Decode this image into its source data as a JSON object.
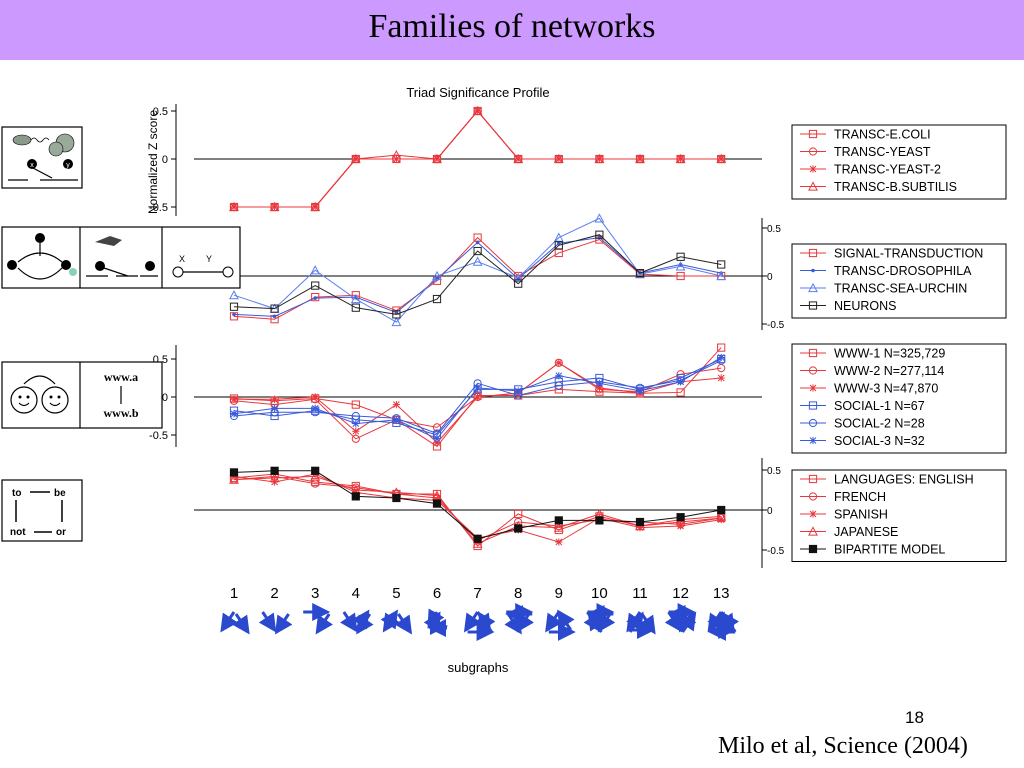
{
  "slide": {
    "title": "Families of networks",
    "number": "18",
    "citation": "Milo et al, Science (2004)"
  },
  "figure": {
    "title": "Triad Significance Profile",
    "ylabel": "Normalized Z score",
    "xlabel": "subgraphs",
    "subgraph_ids": [
      "1",
      "2",
      "3",
      "4",
      "5",
      "6",
      "7",
      "8",
      "9",
      "10",
      "11",
      "12",
      "13"
    ],
    "icon_text": {
      "www_top": "www.a",
      "www_bottom": "www.b",
      "lang_to": "to",
      "lang_be": "be",
      "lang_not": "not",
      "lang_or": "or",
      "neuron_x": "X",
      "neuron_y": "Y",
      "node_x": "x",
      "node_y": "y"
    }
  },
  "chart_data": [
    {
      "type": "line",
      "panel": "transcription",
      "x": [
        1,
        2,
        3,
        4,
        5,
        6,
        7,
        8,
        9,
        10,
        11,
        12,
        13
      ],
      "ylim": [
        -0.6,
        0.6
      ],
      "yticks": [
        "0.5",
        "0",
        "-0.5"
      ],
      "axis_side": "left",
      "series": [
        {
          "name": "TRANSC-E.COLI",
          "color": "#e8373c",
          "marker": "square",
          "values": [
            -0.5,
            -0.5,
            -0.5,
            0,
            0,
            0,
            0.5,
            0,
            0,
            0,
            0,
            0,
            0
          ]
        },
        {
          "name": "TRANSC-YEAST",
          "color": "#e8373c",
          "marker": "circle",
          "values": [
            -0.5,
            -0.5,
            -0.5,
            0,
            0,
            0,
            0.5,
            0,
            0,
            0,
            0,
            0,
            0
          ]
        },
        {
          "name": "TRANSC-YEAST-2",
          "color": "#e8373c",
          "marker": "star",
          "values": [
            -0.5,
            -0.5,
            -0.5,
            0,
            0,
            0,
            0.5,
            0,
            0,
            0,
            0,
            0,
            0
          ]
        },
        {
          "name": "TRANSC-B.SUBTILIS",
          "color": "#e8373c",
          "marker": "triangle",
          "values": [
            -0.5,
            -0.5,
            -0.5,
            0,
            0.04,
            0,
            0.5,
            0,
            0,
            0,
            0,
            0,
            0
          ]
        }
      ]
    },
    {
      "type": "line",
      "panel": "signal-transduction",
      "x": [
        1,
        2,
        3,
        4,
        5,
        6,
        7,
        8,
        9,
        10,
        11,
        12,
        13
      ],
      "ylim": [
        -0.6,
        0.6
      ],
      "yticks": [
        "0.5",
        "0",
        "-0.5"
      ],
      "axis_side": "right",
      "series": [
        {
          "name": "SIGNAL-TRANSDUCTION",
          "color": "#e8373c",
          "marker": "square",
          "values": [
            -0.42,
            -0.45,
            -0.22,
            -0.2,
            -0.36,
            -0.05,
            0.4,
            0,
            0.24,
            0.38,
            0.02,
            0,
            0
          ]
        },
        {
          "name": "TRANSC-DROSOPHILA",
          "color": "#3a5bd9",
          "marker": "dot",
          "values": [
            -0.4,
            -0.42,
            -0.23,
            -0.22,
            -0.38,
            -0.03,
            0.35,
            -0.03,
            0.34,
            0.4,
            0.03,
            0.12,
            0.03
          ]
        },
        {
          "name": "TRANSC-SEA-URCHIN",
          "color": "#5b7ff0",
          "marker": "triangle",
          "values": [
            -0.2,
            -0.34,
            0.06,
            -0.24,
            -0.48,
            0,
            0.15,
            -0.02,
            0.4,
            0.6,
            0.02,
            0.1,
            0
          ]
        },
        {
          "name": "NEURONS",
          "color": "#222222",
          "marker": "square",
          "values": [
            -0.32,
            -0.34,
            -0.1,
            -0.33,
            -0.4,
            -0.24,
            0.26,
            -0.08,
            0.32,
            0.43,
            0.03,
            0.2,
            0.12
          ]
        }
      ]
    },
    {
      "type": "line",
      "panel": "www-social",
      "x": [
        1,
        2,
        3,
        4,
        5,
        6,
        7,
        8,
        9,
        10,
        11,
        12,
        13
      ],
      "ylim": [
        -0.6,
        0.6
      ],
      "yticks": [
        "0.5",
        "0",
        "-0.5"
      ],
      "axis_side": "left",
      "series": [
        {
          "name": "WWW-1 N=325,729",
          "color": "#e8373c",
          "marker": "square",
          "values": [
            -0.02,
            -0.05,
            -0.02,
            -0.1,
            -0.3,
            -0.65,
            0.02,
            0.02,
            0.1,
            0.07,
            0.05,
            0.06,
            0.65
          ]
        },
        {
          "name": "WWW-2 N=277,114",
          "color": "#e8373c",
          "marker": "circle",
          "values": [
            -0.05,
            -0.1,
            -0.03,
            -0.55,
            -0.3,
            -0.4,
            0,
            0.05,
            0.45,
            0.1,
            0.07,
            0.3,
            0.38
          ]
        },
        {
          "name": "WWW-3 N=47,870",
          "color": "#e8373c",
          "marker": "star",
          "values": [
            -0.03,
            -0.03,
            0,
            -0.45,
            -0.1,
            -0.6,
            0,
            0.05,
            0.45,
            0.12,
            0.05,
            0.2,
            0.25
          ]
        },
        {
          "name": "SOCIAL-1 N=67",
          "color": "#3a5bd9",
          "marker": "square",
          "values": [
            -0.18,
            -0.25,
            -0.18,
            -0.3,
            -0.34,
            -0.5,
            0.1,
            0.1,
            0.2,
            0.25,
            0.1,
            0.25,
            0.5
          ]
        },
        {
          "name": "SOCIAL-2 N=28",
          "color": "#3a5bd9",
          "marker": "circle",
          "values": [
            -0.25,
            -0.2,
            -0.2,
            -0.25,
            -0.28,
            -0.48,
            0.18,
            0.02,
            0.15,
            0.2,
            0.12,
            0.22,
            0.48
          ]
        },
        {
          "name": "SOCIAL-3 N=32",
          "color": "#3a5bd9",
          "marker": "star",
          "values": [
            -0.22,
            -0.15,
            -0.15,
            -0.35,
            -0.3,
            -0.55,
            0.12,
            0.08,
            0.28,
            0.18,
            0.08,
            0.2,
            0.52
          ]
        }
      ]
    },
    {
      "type": "line",
      "panel": "languages",
      "x": [
        1,
        2,
        3,
        4,
        5,
        6,
        7,
        8,
        9,
        10,
        11,
        12,
        13
      ],
      "ylim": [
        -0.6,
        0.6
      ],
      "yticks": [
        "0.5",
        "0",
        "-0.5"
      ],
      "axis_side": "right",
      "series": [
        {
          "name": "LANGUAGES: ENGLISH",
          "color": "#e8373c",
          "marker": "square",
          "values": [
            0.4,
            0.45,
            0.35,
            0.3,
            0.2,
            0.2,
            -0.45,
            -0.05,
            -0.25,
            -0.08,
            -0.2,
            -0.15,
            -0.1
          ]
        },
        {
          "name": "FRENCH",
          "color": "#e8373c",
          "marker": "circle",
          "values": [
            0.38,
            0.42,
            0.33,
            0.28,
            0.2,
            0.15,
            -0.38,
            -0.15,
            -0.2,
            -0.12,
            -0.15,
            -0.18,
            -0.1
          ]
        },
        {
          "name": "SPANISH",
          "color": "#e8373c",
          "marker": "star",
          "values": [
            0.42,
            0.35,
            0.45,
            0.22,
            0.15,
            0.12,
            -0.35,
            -0.25,
            -0.4,
            -0.1,
            -0.22,
            -0.2,
            -0.12
          ]
        },
        {
          "name": "JAPANESE",
          "color": "#e8373c",
          "marker": "triangle",
          "values": [
            0.38,
            0.4,
            0.42,
            0.25,
            0.22,
            0.18,
            -0.42,
            -0.2,
            -0.22,
            -0.05,
            -0.2,
            -0.12,
            -0.08
          ]
        },
        {
          "name": "BIPARTITE MODEL",
          "color": "#111111",
          "marker": "filled-square",
          "values": [
            0.47,
            0.49,
            0.49,
            0.17,
            0.15,
            0.08,
            -0.36,
            -0.23,
            -0.13,
            -0.13,
            -0.15,
            -0.09,
            0
          ]
        }
      ]
    }
  ]
}
